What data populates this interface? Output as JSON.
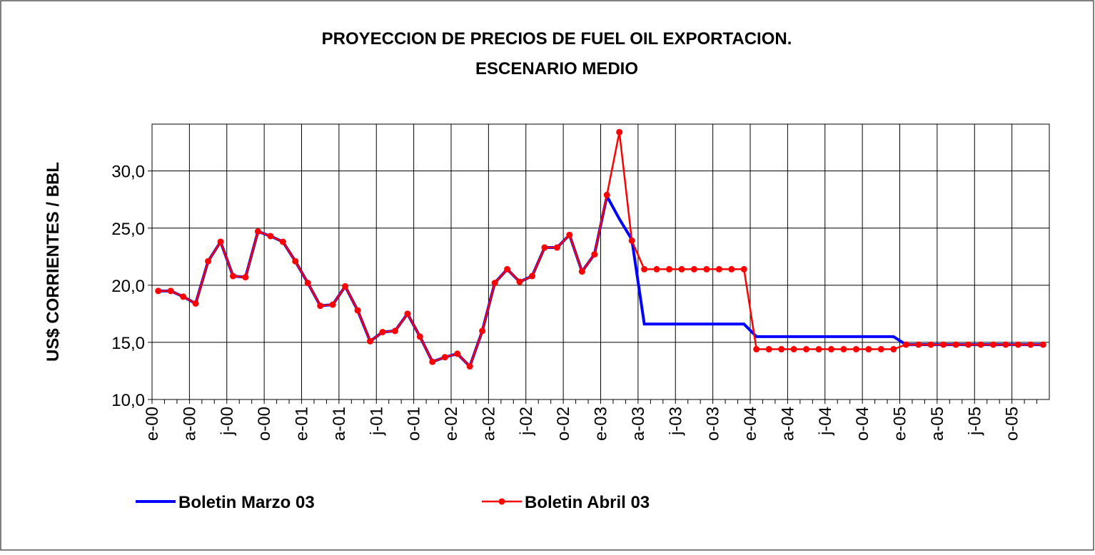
{
  "chart_data": {
    "type": "line",
    "title": "PROYECCION DE PRECIOS DE FUEL OIL EXPORTACION.",
    "subtitle": "ESCENARIO MEDIO",
    "y_label": "US$ CORRIENTES / BBL",
    "categories": [
      "e-00",
      null,
      null,
      "a-00",
      null,
      null,
      "j-00",
      null,
      null,
      "o-00",
      null,
      null,
      "e-01",
      null,
      null,
      "a-01",
      null,
      null,
      "j-01",
      null,
      null,
      "o-01",
      null,
      null,
      "e-02",
      null,
      null,
      "a-02",
      null,
      null,
      "j-02",
      null,
      null,
      "o-02",
      null,
      null,
      "e-03",
      null,
      null,
      "a-03",
      null,
      null,
      "j-03",
      null,
      null,
      "o-03",
      null,
      null,
      "e-04",
      null,
      null,
      "a-04",
      null,
      null,
      "j-04",
      null,
      null,
      "o-04",
      null,
      null,
      "e-05",
      null,
      null,
      "a-05",
      null,
      null,
      "j-05",
      null,
      null,
      "o-05",
      null,
      null
    ],
    "series": [
      {
        "name": "Boletin Marzo 03",
        "color": "#0000ff",
        "marker": false,
        "values": [
          19.5,
          19.5,
          19.0,
          18.4,
          22.1,
          23.8,
          20.8,
          20.7,
          24.7,
          24.3,
          23.8,
          22.1,
          20.2,
          18.2,
          18.3,
          19.9,
          17.8,
          15.1,
          15.9,
          16.0,
          17.5,
          15.5,
          13.3,
          13.7,
          14.0,
          12.9,
          16.0,
          20.2,
          21.4,
          20.3,
          20.8,
          23.3,
          23.3,
          24.4,
          21.2,
          22.7,
          27.8,
          25.8,
          24.0,
          16.6,
          16.6,
          16.6,
          16.6,
          16.6,
          16.6,
          16.6,
          16.6,
          16.6,
          15.5,
          15.5,
          15.5,
          15.5,
          15.5,
          15.5,
          15.5,
          15.5,
          15.5,
          15.5,
          15.5,
          15.5,
          14.8,
          14.8,
          14.8,
          14.8,
          14.8,
          14.8,
          14.8,
          14.8,
          14.8,
          14.8,
          14.8,
          14.8
        ]
      },
      {
        "name": "Boletin Abril 03",
        "color": "#ff0000",
        "marker": true,
        "values": [
          19.5,
          19.5,
          19.0,
          18.4,
          22.1,
          23.8,
          20.8,
          20.7,
          24.7,
          24.3,
          23.8,
          22.1,
          20.2,
          18.2,
          18.3,
          19.9,
          17.8,
          15.1,
          15.9,
          16.0,
          17.5,
          15.5,
          13.3,
          13.7,
          14.0,
          12.9,
          16.0,
          20.2,
          21.4,
          20.3,
          20.8,
          23.3,
          23.3,
          24.4,
          21.2,
          22.7,
          27.9,
          33.4,
          23.9,
          21.4,
          21.4,
          21.4,
          21.4,
          21.4,
          21.4,
          21.4,
          21.4,
          21.4,
          14.4,
          14.4,
          14.4,
          14.4,
          14.4,
          14.4,
          14.4,
          14.4,
          14.4,
          14.4,
          14.4,
          14.4,
          14.8,
          14.8,
          14.8,
          14.8,
          14.8,
          14.8,
          14.8,
          14.8,
          14.8,
          14.8,
          14.8,
          14.8
        ]
      }
    ],
    "ylim": [
      10,
      34.1
    ],
    "yticks": [
      {
        "value": 10,
        "label": "10,0"
      },
      {
        "value": 15,
        "label": "15,0"
      },
      {
        "value": 20,
        "label": "20,0"
      },
      {
        "value": 25,
        "label": "25,0"
      },
      {
        "value": 30,
        "label": "30,0"
      }
    ],
    "grid": true,
    "legend": "bottom"
  }
}
